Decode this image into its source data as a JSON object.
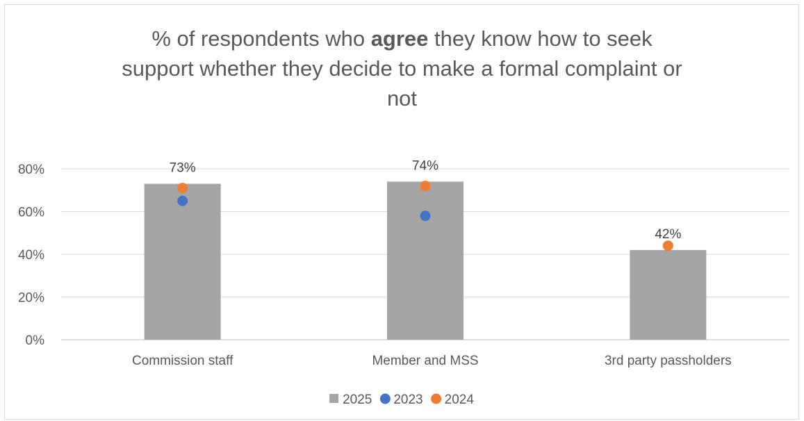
{
  "title": {
    "pre": "% of respondents who ",
    "bold": "agree",
    "line1_post": " they know how to seek",
    "line2": "support whether they decide to make a formal complaint or",
    "line3": "not"
  },
  "chart_data": {
    "type": "bar",
    "categories": [
      "Commission staff",
      "Member and MSS",
      "3rd party passholders"
    ],
    "series": [
      {
        "name": "2025",
        "kind": "bar",
        "values": [
          73,
          74,
          42
        ],
        "labels": [
          "73%",
          "74%",
          "42%"
        ],
        "color": "#a5a5a5"
      },
      {
        "name": "2023",
        "kind": "point",
        "values": [
          65,
          58,
          null
        ],
        "color": "#4472c4"
      },
      {
        "name": "2024",
        "kind": "point",
        "values": [
          71,
          72,
          44
        ],
        "color": "#ed7d31"
      }
    ],
    "ylim": [
      0,
      80
    ],
    "yticks": [
      0,
      20,
      40,
      60,
      80
    ],
    "ytick_labels": [
      "0%",
      "20%",
      "40%",
      "60%",
      "80%"
    ],
    "grid": true,
    "legend_position": "bottom"
  }
}
